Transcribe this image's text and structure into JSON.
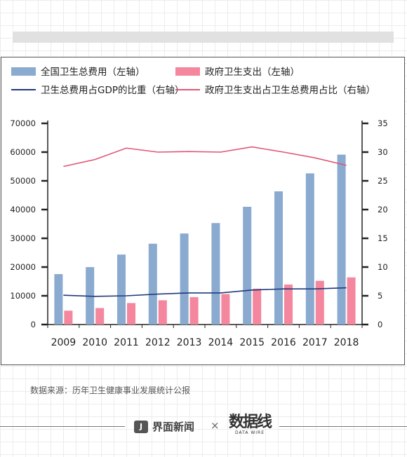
{
  "chart_data": {
    "type": "bar",
    "categories": [
      "2009",
      "2010",
      "2011",
      "2012",
      "2013",
      "2014",
      "2015",
      "2016",
      "2017",
      "2018"
    ],
    "series": [
      {
        "name": "全国卫生总费用（左轴）",
        "kind": "bar",
        "axis": "left",
        "color": "#8aaacf",
        "values": [
          17542,
          19980,
          24346,
          28119,
          31669,
          35312,
          40975,
          46345,
          52598,
          59122
        ]
      },
      {
        "name": "政府卫生支出（左轴）",
        "kind": "bar",
        "axis": "left",
        "color": "#f4869d",
        "values": [
          4816,
          5732,
          7464,
          8432,
          9546,
          10580,
          12475,
          13911,
          15206,
          16399
        ]
      },
      {
        "name": "卫生总费用占GDP的比重（右轴）",
        "kind": "line",
        "axis": "right",
        "color": "#1f3a7a",
        "values": [
          5.1,
          4.9,
          5.0,
          5.3,
          5.5,
          5.5,
          6.0,
          6.2,
          6.2,
          6.4
        ]
      },
      {
        "name": "政府卫生支出占卫生总费用占比（右轴）",
        "kind": "line",
        "axis": "right",
        "color": "#e05675",
        "values": [
          27.5,
          28.7,
          30.7,
          30.0,
          30.1,
          30.0,
          30.9,
          30.0,
          29.0,
          27.7
        ]
      }
    ],
    "y_left": {
      "min": 0,
      "max": 70000,
      "ticks": [
        "0",
        "10000",
        "20000",
        "30000",
        "40000",
        "50000",
        "60000",
        "70000"
      ]
    },
    "y_right": {
      "min": 0,
      "max": 35,
      "ticks": [
        "0",
        "5",
        "10",
        "15",
        "20",
        "25",
        "30",
        "35"
      ]
    },
    "legend_position": "top",
    "grid": false,
    "title": "",
    "xlabel": "",
    "ylabel": ""
  },
  "source": "数据来源：历年卫生健康事业发展统计公报",
  "footer": {
    "logo1_icon": "J",
    "logo1_text": "界面新闻",
    "separator": "×",
    "logo2_text": "数据线",
    "logo2_sub": "DATA WIRE"
  }
}
